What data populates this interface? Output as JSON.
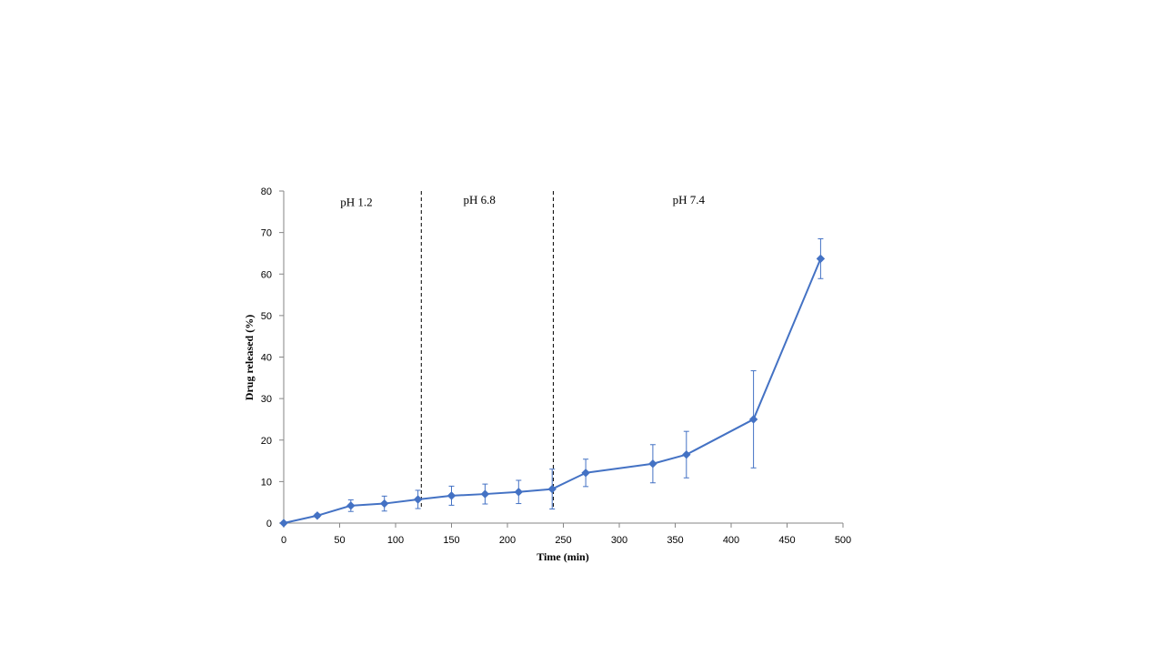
{
  "chart_data": {
    "type": "line",
    "title": "",
    "xlabel": "Time (min)",
    "ylabel": "Drug released (%)",
    "xlim": [
      0,
      500
    ],
    "ylim": [
      0,
      80
    ],
    "x_ticks": [
      0,
      50,
      100,
      150,
      200,
      250,
      300,
      350,
      400,
      450,
      500
    ],
    "y_ticks": [
      0,
      10,
      20,
      30,
      40,
      50,
      60,
      70,
      80
    ],
    "grid": false,
    "legend": "none",
    "series": [
      {
        "color": "#4472C4",
        "marker": "diamond",
        "x": [
          0,
          30,
          60,
          90,
          120,
          150,
          180,
          210,
          240,
          270,
          330,
          360,
          420,
          480
        ],
        "y": [
          0,
          1.8,
          4.2,
          4.7,
          5.7,
          6.6,
          7.0,
          7.5,
          8.2,
          12.1,
          14.3,
          16.5,
          25.0,
          63.7
        ],
        "error": [
          0,
          0.4,
          1.4,
          1.8,
          2.2,
          2.3,
          2.4,
          2.8,
          4.8,
          3.3,
          4.6,
          5.6,
          11.7,
          4.8
        ]
      }
    ],
    "annotations": [
      {
        "type": "vline",
        "x": 123,
        "style": "dashed"
      },
      {
        "type": "vline",
        "x": 241,
        "style": "dashed"
      },
      {
        "type": "text",
        "label": "pH 1.2",
        "x": 65,
        "y": 77.5
      },
      {
        "type": "text",
        "label": "pH 6.8",
        "x": 175,
        "y": 78
      },
      {
        "type": "text",
        "label": "pH 7.4",
        "x": 362,
        "y": 78
      }
    ]
  }
}
